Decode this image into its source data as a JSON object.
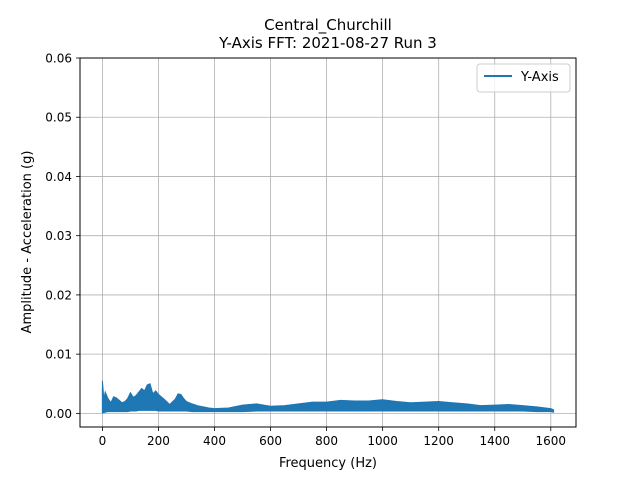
{
  "chart_data": {
    "type": "line",
    "title": "Central_Churchill",
    "subtitle": "Y-Axis FFT: 2021-08-27 Run 3",
    "xlabel": "Frequency (Hz)",
    "ylabel": "Amplitude - Acceleration (g)",
    "xlim": [
      -80,
      1690
    ],
    "ylim": [
      -0.0023,
      0.06
    ],
    "xticks": [
      0,
      200,
      400,
      600,
      800,
      1000,
      1200,
      1400,
      1600
    ],
    "yticks": [
      0.0,
      0.01,
      0.02,
      0.03,
      0.04,
      0.05,
      0.06
    ],
    "xtick_labels": [
      "0",
      "200",
      "400",
      "600",
      "800",
      "1000",
      "1200",
      "1400",
      "1600"
    ],
    "ytick_labels": [
      "0.00",
      "0.01",
      "0.02",
      "0.03",
      "0.04",
      "0.05",
      "0.06"
    ],
    "grid": true,
    "legend_position": "top-right",
    "color": "#1f77b4",
    "series": [
      {
        "name": "Y-Axis",
        "envelope_x": [
          0,
          5,
          10,
          20,
          30,
          40,
          50,
          60,
          70,
          80,
          90,
          100,
          110,
          120,
          130,
          140,
          150,
          160,
          170,
          180,
          190,
          200,
          220,
          240,
          260,
          270,
          280,
          290,
          300,
          320,
          340,
          360,
          380,
          400,
          450,
          500,
          550,
          600,
          650,
          700,
          750,
          800,
          850,
          900,
          950,
          1000,
          1050,
          1100,
          1150,
          1200,
          1250,
          1300,
          1350,
          1400,
          1450,
          1500,
          1550,
          1600,
          1610
        ],
        "envelope_upper": [
          0.0055,
          0.0025,
          0.0036,
          0.0025,
          0.0018,
          0.0028,
          0.0026,
          0.0022,
          0.0018,
          0.002,
          0.0025,
          0.0035,
          0.0027,
          0.003,
          0.0036,
          0.0042,
          0.0038,
          0.0048,
          0.005,
          0.0033,
          0.0038,
          0.0032,
          0.0024,
          0.0015,
          0.0024,
          0.0033,
          0.0032,
          0.0025,
          0.002,
          0.0016,
          0.0013,
          0.0011,
          0.0009,
          0.0008,
          0.0009,
          0.0014,
          0.0016,
          0.0012,
          0.0013,
          0.0016,
          0.0019,
          0.0019,
          0.0022,
          0.0021,
          0.0021,
          0.0023,
          0.002,
          0.0018,
          0.0019,
          0.002,
          0.0018,
          0.0016,
          0.0013,
          0.0014,
          0.0015,
          0.0013,
          0.0011,
          0.0008,
          0.0006
        ],
        "envelope_lower": [
          0.0001,
          0.0001,
          0.0002,
          0.0003,
          0.0003,
          0.0003,
          0.0003,
          0.0003,
          0.0003,
          0.0003,
          0.0003,
          0.0004,
          0.0004,
          0.0004,
          0.0005,
          0.0005,
          0.0005,
          0.0005,
          0.0005,
          0.0005,
          0.0005,
          0.0004,
          0.0004,
          0.0004,
          0.0004,
          0.0004,
          0.0004,
          0.0004,
          0.0004,
          0.0003,
          0.0003,
          0.0003,
          0.0003,
          0.0003,
          0.0003,
          0.0003,
          0.0004,
          0.0004,
          0.0004,
          0.0004,
          0.0004,
          0.0004,
          0.0004,
          0.0004,
          0.0004,
          0.0004,
          0.0004,
          0.0004,
          0.0004,
          0.0004,
          0.0004,
          0.0004,
          0.0004,
          0.0004,
          0.0004,
          0.0004,
          0.0003,
          0.0003,
          0.0002
        ]
      }
    ]
  }
}
